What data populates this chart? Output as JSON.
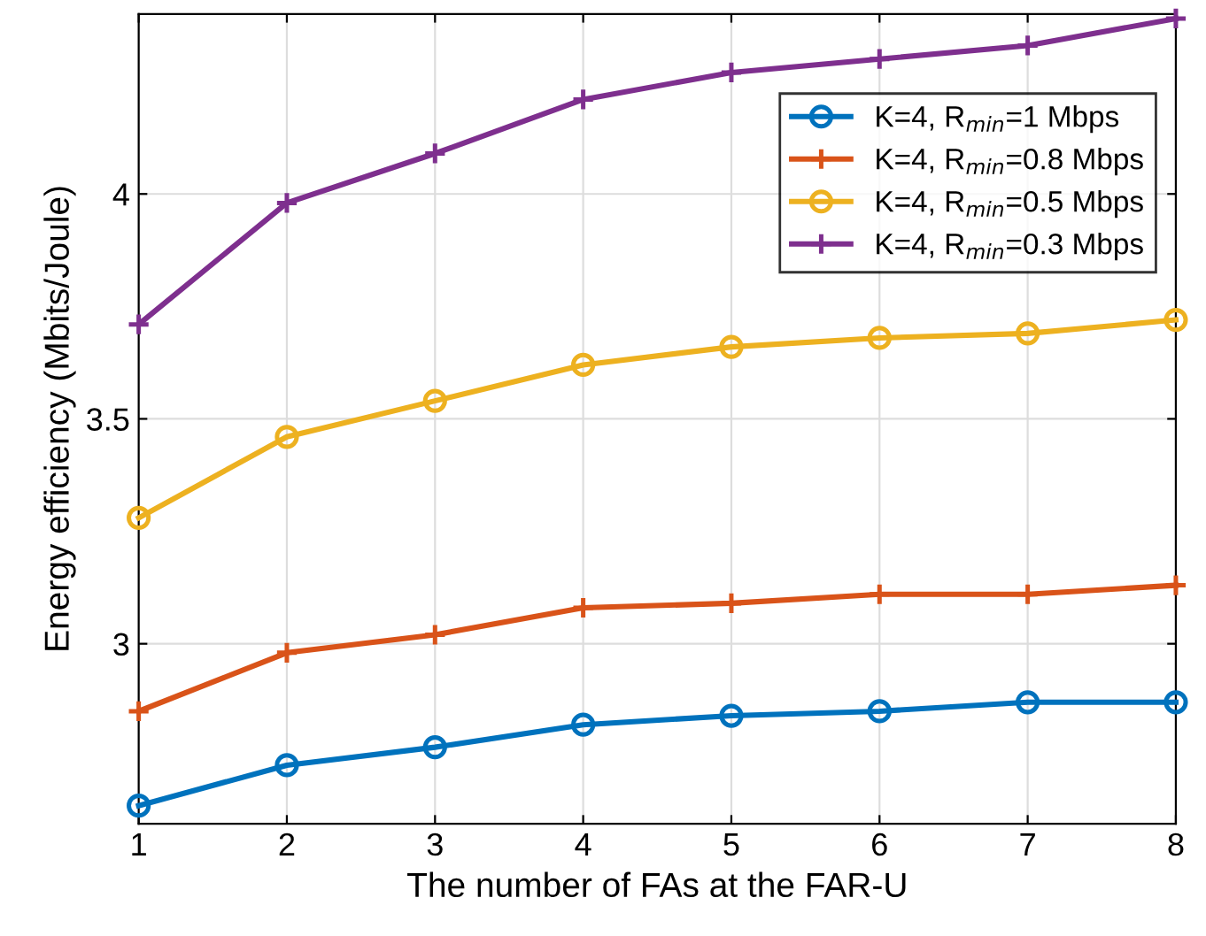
{
  "chart_data": {
    "type": "line",
    "xlabel": "The number of FAs at the FAR-U",
    "ylabel": "Energy efficiency (Mbits/Joule)",
    "x": [
      1,
      2,
      3,
      4,
      5,
      6,
      7,
      8
    ],
    "series": [
      {
        "name": "K=4, R$_{min}$=1 Mbps",
        "color": "#0072bd",
        "marker": "circle",
        "values": [
          2.64,
          2.73,
          2.77,
          2.82,
          2.84,
          2.85,
          2.87,
          2.87
        ]
      },
      {
        "name": "K=4, R$_{min}$=0.8 Mbps",
        "color": "#d95319",
        "marker": "cross",
        "values": [
          2.85,
          2.98,
          3.02,
          3.08,
          3.09,
          3.11,
          3.11,
          3.13
        ]
      },
      {
        "name": "K=4, R$_{min}$=0.5 Mbps",
        "color": "#edb120",
        "marker": "circle",
        "values": [
          3.28,
          3.46,
          3.54,
          3.62,
          3.66,
          3.68,
          3.69,
          3.72
        ]
      },
      {
        "name": "K=4, R$_{min}$=0.3 Mbps",
        "color": "#7e2f8e",
        "marker": "cross",
        "values": [
          3.71,
          3.98,
          4.09,
          4.21,
          4.27,
          4.3,
          4.33,
          4.39
        ]
      }
    ],
    "xlim": [
      1,
      8
    ],
    "xticks": [
      1,
      2,
      3,
      4,
      5,
      6,
      7,
      8
    ],
    "ylim": [
      2.6,
      4.4
    ],
    "yticks": [
      3,
      3.5,
      4
    ],
    "grid": true,
    "legend": "top right",
    "line_style": "solid"
  }
}
